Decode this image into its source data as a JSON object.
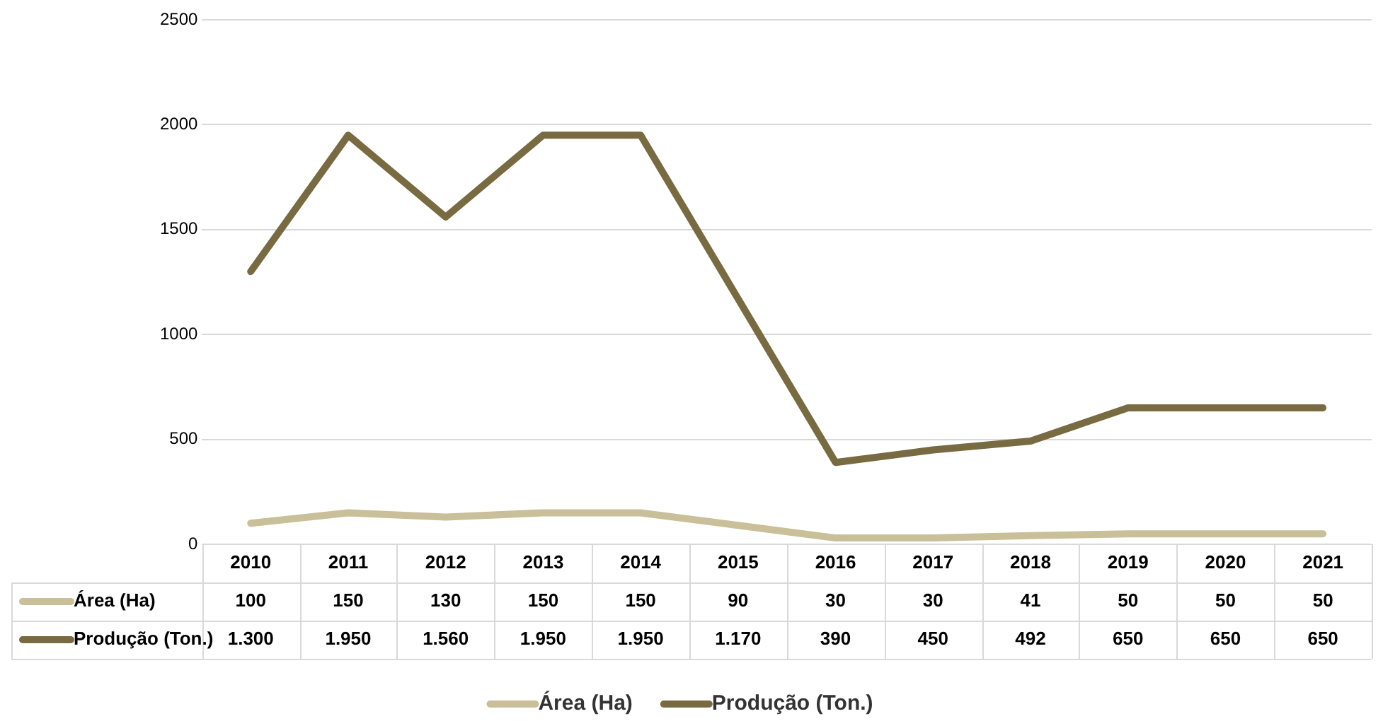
{
  "chart_data": {
    "type": "line",
    "categories": [
      "2010",
      "2011",
      "2012",
      "2013",
      "2014",
      "2015",
      "2016",
      "2017",
      "2018",
      "2019",
      "2020",
      "2021"
    ],
    "series": [
      {
        "name": "Área (Ha)",
        "color": "#c9bf98",
        "values": [
          100,
          150,
          130,
          150,
          150,
          90,
          30,
          30,
          41,
          50,
          50,
          50
        ],
        "value_labels": [
          "100",
          "150",
          "130",
          "150",
          "150",
          "90",
          "30",
          "30",
          "41",
          "50",
          "50",
          "50"
        ]
      },
      {
        "name": "Produção (Ton.)",
        "color": "#786b42",
        "values": [
          1300,
          1950,
          1560,
          1950,
          1950,
          1170,
          390,
          450,
          492,
          650,
          650,
          650
        ],
        "value_labels": [
          "1.300",
          "1.950",
          "1.560",
          "1.950",
          "1.950",
          "1.170",
          "390",
          "450",
          "492",
          "650",
          "650",
          "650"
        ]
      }
    ],
    "ylim": [
      0,
      2500
    ],
    "yticks": [
      0,
      500,
      1000,
      1500,
      2000,
      2500
    ],
    "grid": "y",
    "legend": "bottom",
    "marker": "none",
    "line_style": "solid"
  }
}
